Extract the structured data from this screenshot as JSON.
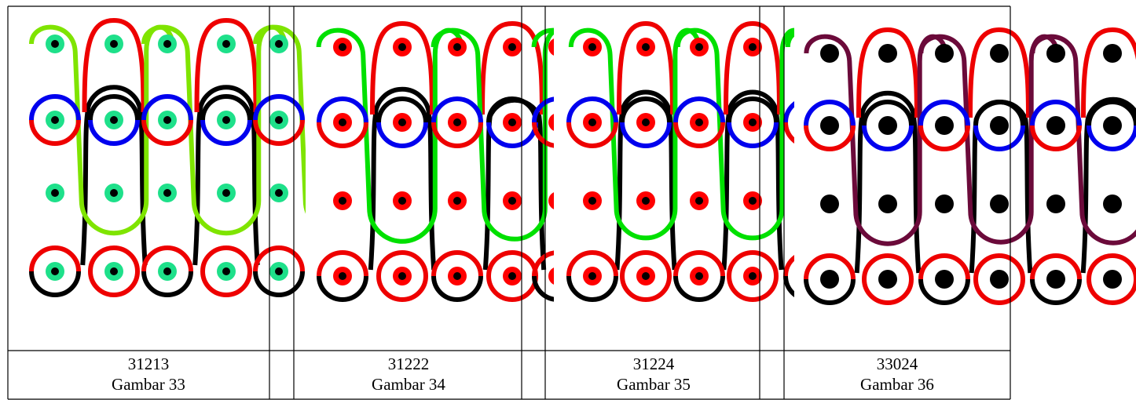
{
  "panels": [
    {
      "code": "31213",
      "label": "Gambar 33",
      "sinker": "#7fe400",
      "dot_core": "#000000",
      "dot_ring": "#1ee08a"
    },
    {
      "code": "31222",
      "label": "Gambar 34",
      "sinker": "#00e000",
      "dot_core": "#000000",
      "dot_ring": "#ff0000"
    },
    {
      "code": "31224",
      "label": "Gambar 35",
      "sinker": "#00e000",
      "dot_core": "#000000",
      "dot_ring": "#ff0000"
    },
    {
      "code": "33024",
      "label": "Gambar 36",
      "sinker": "#6b0a3a",
      "dot_core": "#000000",
      "dot_ring": "#000000"
    }
  ],
  "colors": {
    "red": "#ee0000",
    "blue": "#0000ee",
    "black": "#000000",
    "green": "#1fe85a",
    "grid": "#000000"
  }
}
